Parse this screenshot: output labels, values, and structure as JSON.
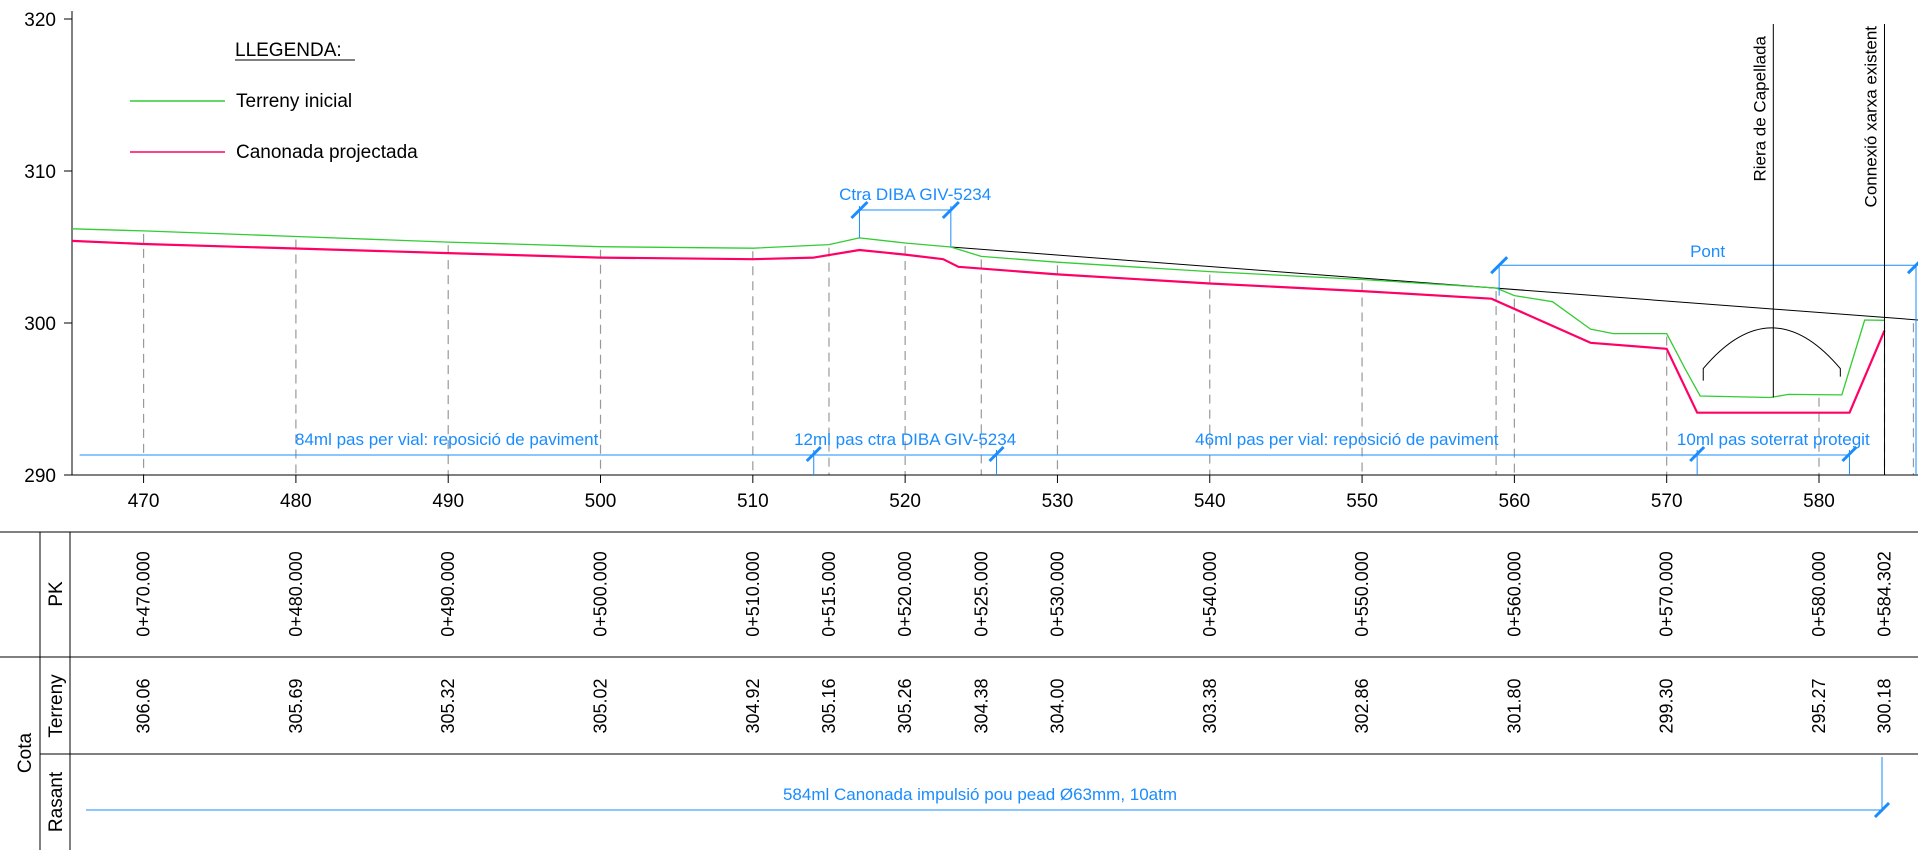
{
  "legend": {
    "title": "LLEGENDA:",
    "items": [
      {
        "label": "Terreny inicial",
        "color": "#33cc33"
      },
      {
        "label": "Canonada projectada",
        "color": "#ff0066"
      }
    ]
  },
  "colors": {
    "annotation": "#1a8cff",
    "axis": "#000000",
    "guide": "#999999"
  },
  "chart_data": {
    "type": "line",
    "xlim": [
      465.3,
      586.5
    ],
    "ylim": [
      290,
      320
    ],
    "x_ticks": [
      470,
      480,
      490,
      500,
      510,
      520,
      530,
      540,
      550,
      560,
      570,
      580
    ],
    "y_ticks": [
      290,
      300,
      310,
      320
    ],
    "series": [
      {
        "name": "Terreny inicial",
        "x": [
          465.3,
          470,
          480,
          490,
          500,
          510,
          515,
          517,
          520,
          523,
          525,
          530,
          540,
          550,
          558.8,
          560,
          562.5,
          565,
          566.5,
          570,
          571.2,
          572.2,
          576.8,
          578,
          581.5,
          583,
          584.3
        ],
        "y": [
          306.2,
          306.06,
          305.69,
          305.32,
          305.02,
          304.92,
          305.16,
          305.6,
          305.26,
          305.0,
          304.38,
          304.0,
          303.38,
          302.86,
          302.3,
          301.8,
          301.4,
          299.6,
          299.3,
          299.3,
          297.0,
          295.2,
          295.1,
          295.3,
          295.27,
          300.2,
          300.18
        ]
      },
      {
        "name": "Canonada projectada",
        "x": [
          465.3,
          470,
          480,
          490,
          500,
          510,
          514,
          517,
          520,
          522.5,
          523.5,
          530,
          540,
          550,
          558.5,
          565,
          570,
          572,
          582,
          584.3
        ],
        "y": [
          305.4,
          305.2,
          304.9,
          304.6,
          304.3,
          304.2,
          304.3,
          304.8,
          304.5,
          304.2,
          303.7,
          303.2,
          302.6,
          302.1,
          301.6,
          298.7,
          298.3,
          294.1,
          294.1,
          299.5
        ]
      }
    ]
  },
  "reference_line": {
    "x": [
      523,
      586.5
    ],
    "y": [
      305.0,
      300.2
    ]
  },
  "annotations": {
    "road": {
      "label": "Ctra DIBA GIV-5234",
      "x_start": 517,
      "x_end": 523
    },
    "bridge": {
      "label": "Pont",
      "x_start": 559,
      "x_end": 586.5,
      "y": 303.8
    },
    "stream": {
      "label": "Riera de Capellada",
      "x": 577
    },
    "connection": {
      "label": "Connexió xarxa existent",
      "x": 584.3
    }
  },
  "segments": [
    {
      "label": "84ml pas per vial: reposició de paviment",
      "x_start": 465.8,
      "x_end": 514
    },
    {
      "label": "12ml pas ctra DIBA GIV-5234",
      "x_start": 514,
      "x_end": 526
    },
    {
      "label": "46ml pas per vial: reposició de paviment",
      "x_start": 526,
      "x_end": 572
    },
    {
      "label": "10ml pas soterrat protegit",
      "x_start": 572,
      "x_end": 582
    }
  ],
  "table": {
    "pk_header": "PK",
    "cota_header": "Cota",
    "terreny_header": "Terreny",
    "rasant_header": "Rasant",
    "stations": [
      {
        "x": 470,
        "pk": "0+470.000",
        "terreny": "306.06"
      },
      {
        "x": 480,
        "pk": "0+480.000",
        "terreny": "305.69"
      },
      {
        "x": 490,
        "pk": "0+490.000",
        "terreny": "305.32"
      },
      {
        "x": 500,
        "pk": "0+500.000",
        "terreny": "305.02"
      },
      {
        "x": 510,
        "pk": "0+510.000",
        "terreny": "304.92"
      },
      {
        "x": 515,
        "pk": "0+515.000",
        "terreny": "305.16"
      },
      {
        "x": 520,
        "pk": "0+520.000",
        "terreny": "305.26"
      },
      {
        "x": 525,
        "pk": "0+525.000",
        "terreny": "304.38"
      },
      {
        "x": 530,
        "pk": "0+530.000",
        "terreny": "304.00"
      },
      {
        "x": 540,
        "pk": "0+540.000",
        "terreny": "303.38"
      },
      {
        "x": 550,
        "pk": "0+550.000",
        "terreny": "302.86"
      },
      {
        "x": 560,
        "pk": "0+560.000",
        "terreny": "301.80"
      },
      {
        "x": 570,
        "pk": "0+570.000",
        "terreny": "299.30"
      },
      {
        "x": 580,
        "pk": "0+580.000",
        "terreny": "295.27"
      },
      {
        "x": 584.302,
        "pk": "0+584.302",
        "terreny": "300.18"
      }
    ],
    "rasant_label": "584ml Canonada impulsió pou pead Ø63mm, 10atm"
  }
}
